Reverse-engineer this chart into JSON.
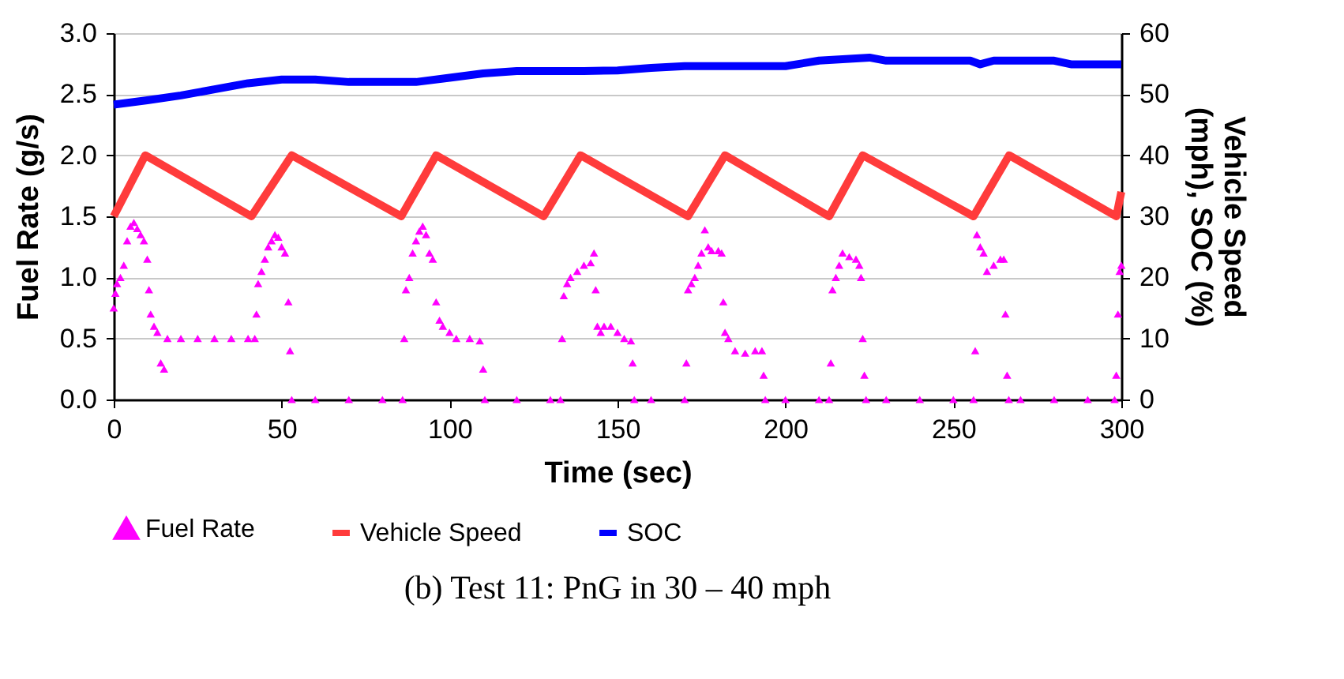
{
  "chart_data": {
    "type": "scatter",
    "title": "(b) Test 11: PnG in 30 – 40 mph",
    "xlabel": "Time (sec)",
    "ylabel": "Fuel Rate (g/s)",
    "y2label": "Vehicle Speed (mph), SOC (%)",
    "xlim": [
      0,
      300
    ],
    "xticks": [
      0,
      50,
      100,
      150,
      200,
      250,
      300
    ],
    "ylim": [
      0,
      3
    ],
    "yticks": [
      {
        "value": 0,
        "label": "0.0"
      },
      {
        "value": 0.5,
        "label": "0.5"
      },
      {
        "value": 1,
        "label": "1.0"
      },
      {
        "value": 1.5,
        "label": "1.5"
      },
      {
        "value": 2,
        "label": "2.0"
      },
      {
        "value": 2.5,
        "label": "2.5"
      },
      {
        "value": 3,
        "label": "3.0"
      }
    ],
    "y2lim": [
      0,
      60
    ],
    "y2ticks": [
      0,
      10,
      20,
      30,
      40,
      50,
      60
    ],
    "grid": "y",
    "legend": "bottom",
    "series": [
      {
        "name": "Fuel Rate",
        "marker": "triangle",
        "color": "#ff00ff",
        "x": [
          0,
          0.5,
          1,
          2,
          3,
          4,
          5,
          6,
          7,
          8,
          9,
          10,
          10.5,
          11,
          12,
          13,
          14,
          15,
          16,
          20,
          25,
          30,
          35,
          40,
          42,
          42.5,
          43,
          44,
          45,
          46,
          47,
          48,
          49,
          50,
          51,
          52,
          52.5,
          53,
          60,
          70,
          80,
          86,
          86.5,
          87,
          88,
          89,
          90,
          91,
          92,
          93,
          94,
          95,
          96,
          97,
          98,
          100,
          102,
          106,
          109,
          110,
          110.5,
          120,
          130,
          133,
          133.5,
          134,
          135,
          136,
          138,
          140,
          142,
          143,
          143.5,
          144,
          145,
          146,
          148,
          150,
          152,
          154,
          154.5,
          155,
          160,
          170,
          170.5,
          171,
          172,
          173,
          174,
          175,
          176,
          177,
          178,
          180,
          181,
          181.5,
          182,
          183,
          185,
          188,
          191,
          193,
          193.5,
          194,
          200,
          210,
          213,
          213.5,
          214,
          215,
          216,
          217,
          219,
          221,
          222,
          222.5,
          223,
          223.5,
          224,
          230,
          240,
          250,
          256,
          256.5,
          257,
          258,
          259,
          260,
          262,
          264,
          265,
          265.5,
          266,
          266.5,
          270,
          280,
          290,
          298,
          298.5,
          299,
          299.5,
          300
        ],
        "values": [
          0.75,
          0.87,
          0.95,
          1.0,
          1.1,
          1.3,
          1.42,
          1.45,
          1.4,
          1.35,
          1.3,
          1.15,
          0.9,
          0.7,
          0.6,
          0.55,
          0.3,
          0.25,
          0.5,
          0.5,
          0.5,
          0.5,
          0.5,
          0.5,
          0.5,
          0.7,
          0.95,
          1.05,
          1.15,
          1.25,
          1.3,
          1.35,
          1.33,
          1.25,
          1.2,
          0.8,
          0.4,
          0,
          0,
          0,
          0,
          0,
          0.5,
          0.9,
          1.0,
          1.2,
          1.3,
          1.38,
          1.42,
          1.35,
          1.2,
          1.15,
          0.8,
          0.65,
          0.6,
          0.55,
          0.5,
          0.5,
          0.48,
          0.25,
          0,
          0,
          0,
          0,
          0.5,
          0.85,
          0.95,
          1.0,
          1.05,
          1.1,
          1.12,
          1.2,
          0.9,
          0.6,
          0.55,
          0.6,
          0.6,
          0.55,
          0.5,
          0.48,
          0.3,
          0,
          0,
          0,
          0.3,
          0.9,
          0.95,
          1.0,
          1.1,
          1.2,
          1.39,
          1.25,
          1.22,
          1.22,
          1.2,
          0.8,
          0.55,
          0.5,
          0.4,
          0.38,
          0.4,
          0.4,
          0.2,
          0,
          0,
          0,
          0,
          0.3,
          0.9,
          1.0,
          1.1,
          1.2,
          1.17,
          1.15,
          1.1,
          1.0,
          0.5,
          0.2,
          0,
          0,
          0,
          0,
          0,
          0.4,
          1.35,
          1.25,
          1.2,
          1.05,
          1.1,
          1.15,
          1.15,
          0.7,
          0.2,
          0,
          0,
          0,
          0,
          0,
          0.2,
          0.7,
          1.05,
          1.1
        ]
      },
      {
        "name": "Vehicle Speed",
        "type": "line",
        "axis": "y2",
        "color": "#ff3b3b",
        "x": [
          0,
          9.4,
          41,
          53,
          85.6,
          96,
          128,
          139,
          171,
          182,
          213,
          223,
          256,
          266.6,
          298.5,
          300
        ],
        "values": [
          30,
          40,
          30,
          40,
          30,
          40,
          30,
          40,
          30,
          40,
          30,
          40,
          30,
          40,
          30,
          34
        ]
      },
      {
        "name": "SOC",
        "type": "line",
        "axis": "y2",
        "color": "#0000ff",
        "x": [
          0,
          10,
          20,
          30,
          40,
          50,
          60,
          70,
          80,
          90,
          100,
          110,
          120,
          140,
          150,
          160,
          170,
          200,
          210,
          225,
          230,
          255,
          258,
          262,
          280,
          285,
          300
        ],
        "values": [
          48.3,
          49,
          49.8,
          50.8,
          51.8,
          52.4,
          52.4,
          52,
          52,
          52,
          52.7,
          53.4,
          53.8,
          53.8,
          53.9,
          54.3,
          54.6,
          54.6,
          55.5,
          56,
          55.5,
          55.5,
          54.9,
          55.5,
          55.5,
          54.9,
          54.9
        ]
      }
    ]
  }
}
